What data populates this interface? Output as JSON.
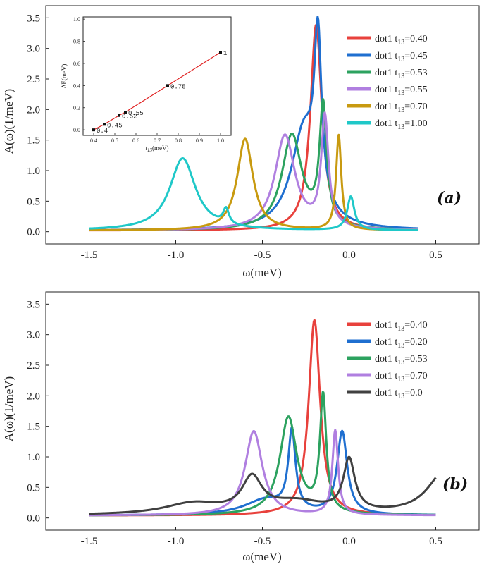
{
  "chart_data": [
    {
      "panel": "(a)",
      "panel_label": "(a)",
      "type": "line",
      "xlabel": "ω(meV)",
      "ylabel": "A(ω)(1/meV)",
      "xlim": [
        -1.75,
        0.75
      ],
      "ylim": [
        -0.2,
        3.7
      ],
      "xticks": [
        -1.5,
        -1.0,
        -0.5,
        0.0,
        0.5
      ],
      "xtick_labels": [
        "-1.5",
        "-1.0",
        "-0.5",
        "0.0",
        "0.5"
      ],
      "yticks": [
        0.0,
        0.5,
        1.0,
        1.5,
        2.0,
        2.5,
        3.0,
        3.5
      ],
      "ytick_labels": [
        "0.0",
        "0.5",
        "1.0",
        "1.5",
        "2.0",
        "2.5",
        "3.0",
        "3.5"
      ],
      "grid": false,
      "legend_placement": "top-right",
      "series": [
        {
          "label_main": "dot1 t",
          "label_sub": "13",
          "label_tail": "=0.40",
          "color": "#e8413c",
          "peaks": [
            [
              -0.19,
              3.37,
              0.04
            ]
          ]
        },
        {
          "label_main": "dot1 t",
          "label_sub": "13",
          "label_tail": "=0.45",
          "color": "#1f6fd0",
          "peaks": [
            [
              -0.26,
              1.6,
              0.09
            ],
            [
              -0.18,
              2.6,
              0.025
            ]
          ]
        },
        {
          "label_main": "dot1 t",
          "label_sub": "13",
          "label_tail": "=0.53",
          "color": "#2ca25f",
          "peaks": [
            [
              -0.33,
              1.55,
              0.07
            ],
            [
              -0.15,
              1.95,
              0.025
            ]
          ]
        },
        {
          "label_main": "dot1 t",
          "label_sub": "13",
          "label_tail": "=0.55",
          "color": "#b07fe0",
          "peaks": [
            [
              -0.37,
              1.55,
              0.07
            ],
            [
              -0.14,
              1.8,
              0.025
            ]
          ]
        },
        {
          "label_main": "dot1 t",
          "label_sub": "13",
          "label_tail": "=0.70",
          "color": "#c89a10",
          "peaks": [
            [
              -0.6,
              1.5,
              0.055
            ],
            [
              -0.06,
              1.55,
              0.018
            ]
          ]
        },
        {
          "label_main": "dot1 t",
          "label_sub": "13",
          "label_tail": "=1.00",
          "color": "#1fc8c8",
          "peaks": [
            [
              -0.96,
              1.18,
              0.09
            ],
            [
              -0.71,
              0.25,
              0.02
            ],
            [
              0.01,
              0.55,
              0.025
            ]
          ]
        }
      ],
      "x_range": [
        -1.5,
        0.4
      ],
      "baseline": 0.02,
      "inset": {
        "xlabel_main": "t",
        "xlabel_sub": "13",
        "xlabel_tail": "(meV)",
        "ylabel": "ΔE(meV)",
        "xlim": [
          0.35,
          1.05
        ],
        "ylim": [
          -0.05,
          1.02
        ],
        "xticks": [
          0.4,
          0.5,
          0.6,
          0.7,
          0.8,
          0.9,
          1.0
        ],
        "xtick_labels": [
          "0.4",
          "0.5",
          "0.6",
          "0.7",
          "0.8",
          "0.9",
          "1.0"
        ],
        "yticks": [
          0.0,
          0.2,
          0.4,
          0.6,
          0.8,
          1.0
        ],
        "ytick_labels": [
          "0.0",
          "0.2",
          "0.4",
          "0.6",
          "0.8",
          "1.0"
        ],
        "line_color": "#e02020",
        "points": [
          {
            "x": 0.4,
            "y": 0.0,
            "label": "0.4"
          },
          {
            "x": 0.45,
            "y": 0.05,
            "label": "0.45"
          },
          {
            "x": 0.52,
            "y": 0.13,
            "label": "0.52"
          },
          {
            "x": 0.55,
            "y": 0.16,
            "label": "0.55"
          },
          {
            "x": 0.75,
            "y": 0.4,
            "label": "0.75"
          },
          {
            "x": 1.0,
            "y": 0.7,
            "label": "1"
          }
        ]
      }
    },
    {
      "panel": "(b)",
      "panel_label": "(b)",
      "type": "line",
      "xlabel": "ω(meV)",
      "ylabel": "A(ω)(1/meV)",
      "xlim": [
        -1.75,
        0.75
      ],
      "ylim": [
        -0.2,
        3.7
      ],
      "xticks": [
        -1.5,
        -1.0,
        -0.5,
        0.0,
        0.5
      ],
      "xtick_labels": [
        "-1.5",
        "-1.0",
        "-0.5",
        "0.0",
        "0.5"
      ],
      "yticks": [
        0.0,
        0.5,
        1.0,
        1.5,
        2.0,
        2.5,
        3.0,
        3.5
      ],
      "ytick_labels": [
        "0.0",
        "0.5",
        "1.0",
        "1.5",
        "2.0",
        "2.5",
        "3.0",
        "3.5"
      ],
      "grid": false,
      "legend_placement": "top-right",
      "series": [
        {
          "label_main": "dot1 t",
          "label_sub": "13",
          "label_tail": "=0.40",
          "color": "#e8413c",
          "peaks": [
            [
              -0.2,
              3.2,
              0.04
            ]
          ]
        },
        {
          "label_main": "dot1 t",
          "label_sub": "13",
          "label_tail": "=0.20",
          "color": "#1f6fd0",
          "peaks": [
            [
              -0.48,
              0.25,
              0.15
            ],
            [
              -0.33,
              1.3,
              0.025
            ],
            [
              -0.04,
              1.35,
              0.035
            ]
          ]
        },
        {
          "label_main": "dot1 t",
          "label_sub": "13",
          "label_tail": "=0.53",
          "color": "#2ca25f",
          "peaks": [
            [
              -0.35,
              1.6,
              0.06
            ],
            [
              -0.15,
              1.9,
              0.022
            ]
          ]
        },
        {
          "label_main": "dot1 t",
          "label_sub": "13",
          "label_tail": "=0.70",
          "color": "#b07fe0",
          "peaks": [
            [
              -0.55,
              1.38,
              0.06
            ],
            [
              -0.08,
              1.38,
              0.02
            ]
          ]
        },
        {
          "label_main": "dot1 t",
          "label_sub": "13",
          "label_tail": "=0.0",
          "color": "#404040",
          "peaks": [
            [
              -0.9,
              0.18,
              0.2
            ],
            [
              -0.56,
              0.55,
              0.07
            ],
            [
              -0.3,
              0.2,
              0.2
            ],
            [
              0.0,
              0.85,
              0.04
            ],
            [
              0.55,
              0.7,
              0.12
            ]
          ]
        }
      ],
      "x_range": [
        -1.5,
        0.5
      ],
      "baseline": 0.04
    }
  ]
}
